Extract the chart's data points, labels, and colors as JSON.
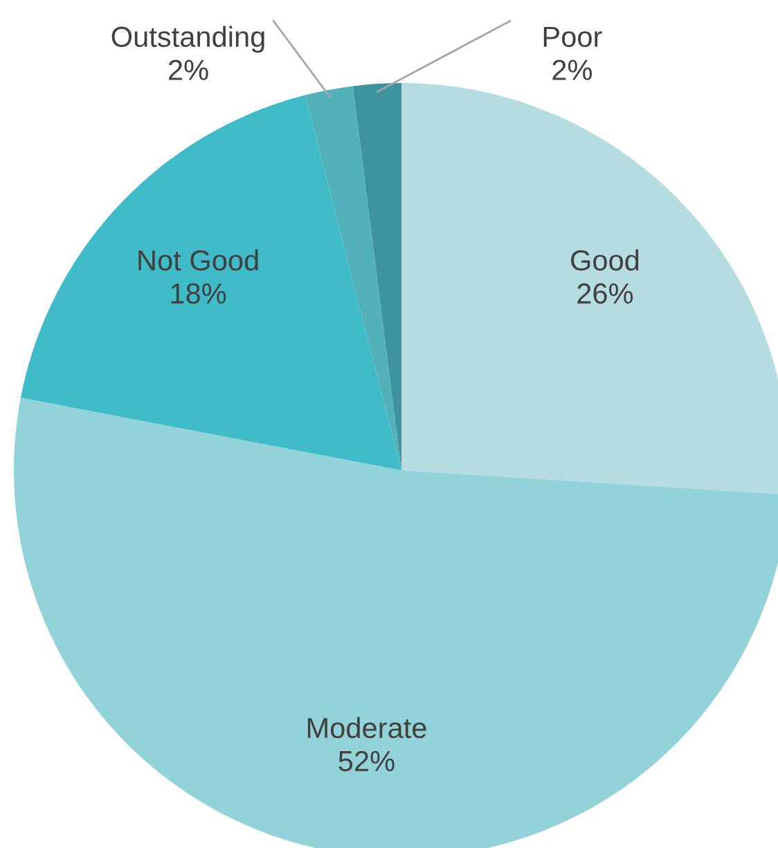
{
  "chart_data": {
    "type": "pie",
    "categories": [
      "Good",
      "Moderate",
      "Not Good",
      "Outstanding",
      "Poor"
    ],
    "values": [
      26,
      52,
      18,
      2,
      2
    ],
    "value_labels": [
      "26%",
      "52%",
      "18%",
      "2%",
      "2%"
    ],
    "colors": [
      "#b5dce1",
      "#92d2d9",
      "#3fbcc8",
      "#52b1ba",
      "#3e949d"
    ]
  }
}
